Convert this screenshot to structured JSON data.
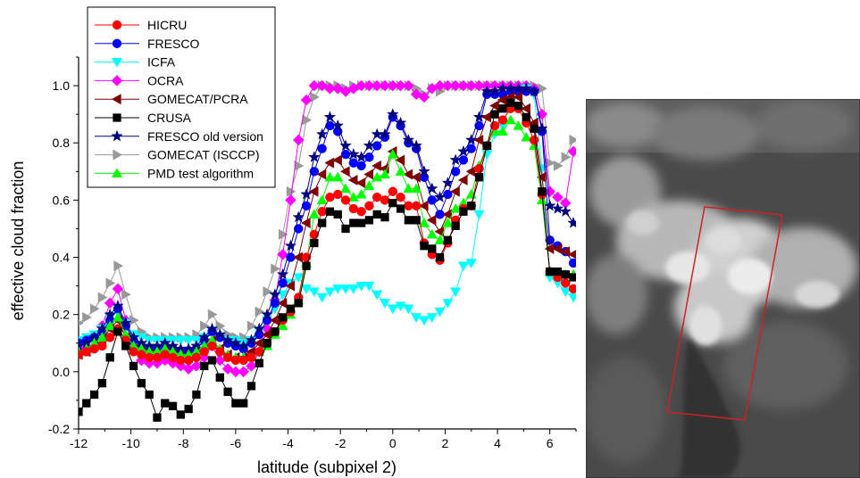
{
  "chart_data": {
    "type": "line",
    "xlabel": "latitude (subpixel 2)",
    "ylabel": "effective cloud fraction",
    "xlim": [
      -12,
      7
    ],
    "ylim": [
      -0.2,
      1.1
    ],
    "xticks": [
      -12,
      -10,
      -8,
      -6,
      -4,
      -2,
      0,
      2,
      4,
      6
    ],
    "yticks": [
      -0.2,
      0.0,
      0.2,
      0.4,
      0.6,
      0.8,
      1.0
    ],
    "xtick_labels": [
      "-12",
      "-10",
      "-8",
      "-6",
      "-4",
      "-2",
      "0",
      "2",
      "4",
      "6"
    ],
    "ytick_labels": [
      "-0.2",
      "0.0",
      "0.2",
      "0.4",
      "0.6",
      "0.8",
      "1.0"
    ],
    "legend_position": "top-left",
    "grid": false,
    "x": [
      -12,
      -11.7,
      -11.4,
      -11.1,
      -10.8,
      -10.5,
      -10.2,
      -9.9,
      -9.6,
      -9.3,
      -9.0,
      -8.7,
      -8.4,
      -8.1,
      -7.8,
      -7.5,
      -7.2,
      -6.9,
      -6.6,
      -6.3,
      -6.0,
      -5.7,
      -5.4,
      -5.1,
      -4.8,
      -4.5,
      -4.2,
      -3.9,
      -3.6,
      -3.3,
      -3.0,
      -2.7,
      -2.4,
      -2.1,
      -1.8,
      -1.5,
      -1.2,
      -0.9,
      -0.6,
      -0.3,
      0.0,
      0.3,
      0.6,
      0.9,
      1.2,
      1.5,
      1.8,
      2.1,
      2.4,
      2.7,
      3.0,
      3.3,
      3.6,
      3.9,
      4.2,
      4.5,
      4.8,
      5.1,
      5.4,
      5.7,
      6.0,
      6.3,
      6.6,
      6.9
    ],
    "series": [
      {
        "name": "HICRU",
        "color": "#ff0000",
        "marker": "circle",
        "values": [
          0.06,
          0.07,
          0.08,
          0.09,
          0.12,
          0.15,
          0.11,
          0.07,
          0.06,
          0.05,
          0.05,
          0.06,
          0.05,
          0.04,
          0.04,
          0.05,
          0.07,
          0.09,
          0.07,
          0.05,
          0.04,
          0.04,
          0.05,
          0.07,
          0.1,
          0.14,
          0.18,
          0.21,
          0.26,
          0.4,
          0.48,
          0.56,
          0.61,
          0.62,
          0.6,
          0.57,
          0.56,
          0.58,
          0.61,
          0.6,
          0.63,
          0.61,
          0.58,
          0.58,
          0.45,
          0.41,
          0.39,
          0.45,
          0.53,
          0.57,
          0.58,
          0.71,
          0.79,
          0.86,
          0.88,
          0.92,
          0.92,
          0.87,
          0.81,
          0.62,
          0.35,
          0.33,
          0.31,
          0.29
        ]
      },
      {
        "name": "FRESCO",
        "color": "#0000ff",
        "marker": "circle",
        "values": [
          0.1,
          0.11,
          0.12,
          0.14,
          0.18,
          0.22,
          0.16,
          0.11,
          0.09,
          0.08,
          0.08,
          0.09,
          0.08,
          0.07,
          0.07,
          0.08,
          0.11,
          0.14,
          0.12,
          0.1,
          0.09,
          0.08,
          0.1,
          0.13,
          0.18,
          0.24,
          0.31,
          0.4,
          0.5,
          0.58,
          0.7,
          0.78,
          0.86,
          0.84,
          0.76,
          0.73,
          0.72,
          0.75,
          0.79,
          0.82,
          0.89,
          0.86,
          0.8,
          0.78,
          0.68,
          0.6,
          0.55,
          0.62,
          0.7,
          0.74,
          0.78,
          0.86,
          0.97,
          0.97,
          0.97,
          0.98,
          0.98,
          0.98,
          0.98,
          0.84,
          0.46,
          0.44,
          0.42,
          0.38
        ]
      },
      {
        "name": "ICFA",
        "color": "#00ffff",
        "marker": "triangle-down",
        "values": [
          0.11,
          0.12,
          0.13,
          0.15,
          0.19,
          0.21,
          0.17,
          0.13,
          0.12,
          0.11,
          0.11,
          0.11,
          0.11,
          0.11,
          0.11,
          0.11,
          0.12,
          0.14,
          0.12,
          0.11,
          0.11,
          0.1,
          0.11,
          0.14,
          0.18,
          0.22,
          0.27,
          0.31,
          0.33,
          0.29,
          0.28,
          0.26,
          0.28,
          0.29,
          0.29,
          0.29,
          0.3,
          0.3,
          0.27,
          0.24,
          0.22,
          0.23,
          0.22,
          0.19,
          0.18,
          0.19,
          0.21,
          0.24,
          0.28,
          0.37,
          0.38,
          0.55,
          0.76,
          0.83,
          0.86,
          0.94,
          0.97,
          0.99,
          0.97,
          0.71,
          0.33,
          0.31,
          0.28,
          0.26
        ]
      },
      {
        "name": "OCRA",
        "color": "#ff00ff",
        "marker": "diamond",
        "values": [
          0.08,
          0.09,
          0.12,
          0.16,
          0.24,
          0.29,
          0.18,
          0.08,
          0.04,
          0.03,
          0.03,
          0.04,
          0.03,
          0.02,
          0.01,
          0.02,
          0.05,
          0.09,
          0.04,
          0.01,
          0.0,
          0.0,
          0.02,
          0.07,
          0.15,
          0.25,
          0.41,
          0.6,
          0.81,
          0.95,
          1.0,
          1.0,
          0.99,
          0.99,
          0.98,
          0.99,
          1.0,
          1.0,
          1.0,
          1.0,
          1.0,
          1.0,
          1.0,
          0.97,
          0.96,
          0.99,
          1.0,
          1.0,
          1.0,
          1.0,
          1.0,
          1.0,
          1.0,
          1.0,
          1.0,
          1.0,
          1.0,
          1.0,
          0.99,
          0.9,
          0.63,
          0.61,
          0.59,
          0.77
        ]
      },
      {
        "name": "GOMECAT/PCRA",
        "color": "#800000",
        "marker": "triangle-left",
        "values": [
          0.06,
          0.07,
          0.09,
          0.11,
          0.15,
          0.18,
          0.12,
          0.08,
          0.07,
          0.06,
          0.06,
          0.07,
          0.06,
          0.05,
          0.05,
          0.06,
          0.08,
          0.11,
          0.08,
          0.06,
          0.05,
          0.05,
          0.07,
          0.1,
          0.13,
          0.18,
          0.24,
          0.3,
          0.4,
          0.52,
          0.63,
          0.69,
          0.73,
          0.74,
          0.7,
          0.67,
          0.66,
          0.69,
          0.72,
          0.71,
          0.77,
          0.74,
          0.69,
          0.68,
          0.58,
          0.53,
          0.49,
          0.55,
          0.63,
          0.67,
          0.7,
          0.81,
          0.89,
          0.93,
          0.95,
          0.96,
          0.96,
          0.92,
          0.87,
          0.68,
          0.43,
          0.43,
          0.42,
          0.41
        ]
      },
      {
        "name": "CRUSA",
        "color": "#000000",
        "marker": "square",
        "values": [
          -0.14,
          -0.11,
          -0.08,
          -0.04,
          0.05,
          0.14,
          0.09,
          0.02,
          -0.04,
          -0.08,
          -0.16,
          -0.11,
          -0.12,
          -0.15,
          -0.13,
          -0.08,
          0.02,
          0.04,
          -0.02,
          -0.07,
          -0.11,
          -0.11,
          -0.05,
          0.03,
          0.1,
          0.14,
          0.19,
          0.22,
          0.24,
          0.37,
          0.45,
          0.52,
          0.56,
          0.55,
          0.5,
          0.52,
          0.52,
          0.53,
          0.55,
          0.54,
          0.59,
          0.57,
          0.53,
          0.53,
          0.44,
          0.43,
          0.4,
          0.46,
          0.51,
          0.56,
          0.58,
          0.68,
          0.79,
          0.9,
          0.92,
          0.94,
          0.93,
          0.89,
          0.85,
          0.63,
          0.35,
          0.35,
          0.34,
          0.33
        ]
      },
      {
        "name": "FRESCO old version",
        "color": "#000080",
        "marker": "star",
        "values": [
          0.09,
          0.1,
          0.12,
          0.15,
          0.2,
          0.23,
          0.17,
          0.12,
          0.1,
          0.09,
          0.09,
          0.1,
          0.09,
          0.08,
          0.08,
          0.09,
          0.12,
          0.15,
          0.13,
          0.11,
          0.1,
          0.09,
          0.11,
          0.15,
          0.2,
          0.27,
          0.34,
          0.44,
          0.54,
          0.62,
          0.75,
          0.83,
          0.89,
          0.86,
          0.79,
          0.76,
          0.75,
          0.79,
          0.83,
          0.83,
          0.9,
          0.87,
          0.81,
          0.79,
          0.7,
          0.64,
          0.61,
          0.66,
          0.74,
          0.77,
          0.81,
          0.89,
          0.98,
          0.98,
          0.99,
          0.99,
          0.99,
          0.99,
          0.98,
          0.85,
          0.58,
          0.57,
          0.56,
          0.52
        ]
      },
      {
        "name": "GOMECAT (ISCCP)",
        "color": "#999999",
        "marker": "triangle-right",
        "values": [
          0.17,
          0.19,
          0.22,
          0.26,
          0.31,
          0.37,
          0.27,
          0.18,
          0.14,
          0.12,
          0.12,
          0.12,
          0.12,
          0.12,
          0.12,
          0.13,
          0.16,
          0.2,
          0.16,
          0.13,
          0.12,
          0.12,
          0.16,
          0.21,
          0.28,
          0.36,
          0.48,
          0.63,
          0.72,
          0.88,
          0.96,
          1.0,
          1.0,
          1.0,
          0.99,
          1.0,
          1.0,
          1.0,
          1.0,
          1.0,
          1.0,
          1.0,
          1.0,
          0.99,
          0.97,
          0.99,
          0.98,
          1.0,
          1.0,
          1.0,
          1.0,
          1.0,
          1.0,
          1.0,
          1.0,
          1.0,
          1.0,
          1.0,
          1.0,
          0.99,
          0.73,
          0.72,
          0.75,
          0.81
        ]
      },
      {
        "name": "PMD test algorithm",
        "color": "#00ff00",
        "marker": "triangle-up",
        "values": [
          0.07,
          0.08,
          0.1,
          0.12,
          0.16,
          0.19,
          0.13,
          0.09,
          0.08,
          0.07,
          0.07,
          0.08,
          0.07,
          0.06,
          0.06,
          0.07,
          0.09,
          0.11,
          0.08,
          0.06,
          0.05,
          0.05,
          0.05,
          0.07,
          0.09,
          0.13,
          0.16,
          0.2,
          0.25,
          0.38,
          0.55,
          0.6,
          0.68,
          0.68,
          0.64,
          0.61,
          0.62,
          0.65,
          0.68,
          0.69,
          0.76,
          0.7,
          0.64,
          0.64,
          0.52,
          0.48,
          0.46,
          0.52,
          0.57,
          0.59,
          0.62,
          0.72,
          0.79,
          0.84,
          0.84,
          0.88,
          0.86,
          0.82,
          0.79,
          0.6,
          0.35,
          0.34,
          0.34,
          0.34
        ]
      }
    ]
  },
  "image": {
    "description_name": "satellite-cloud-image"
  }
}
